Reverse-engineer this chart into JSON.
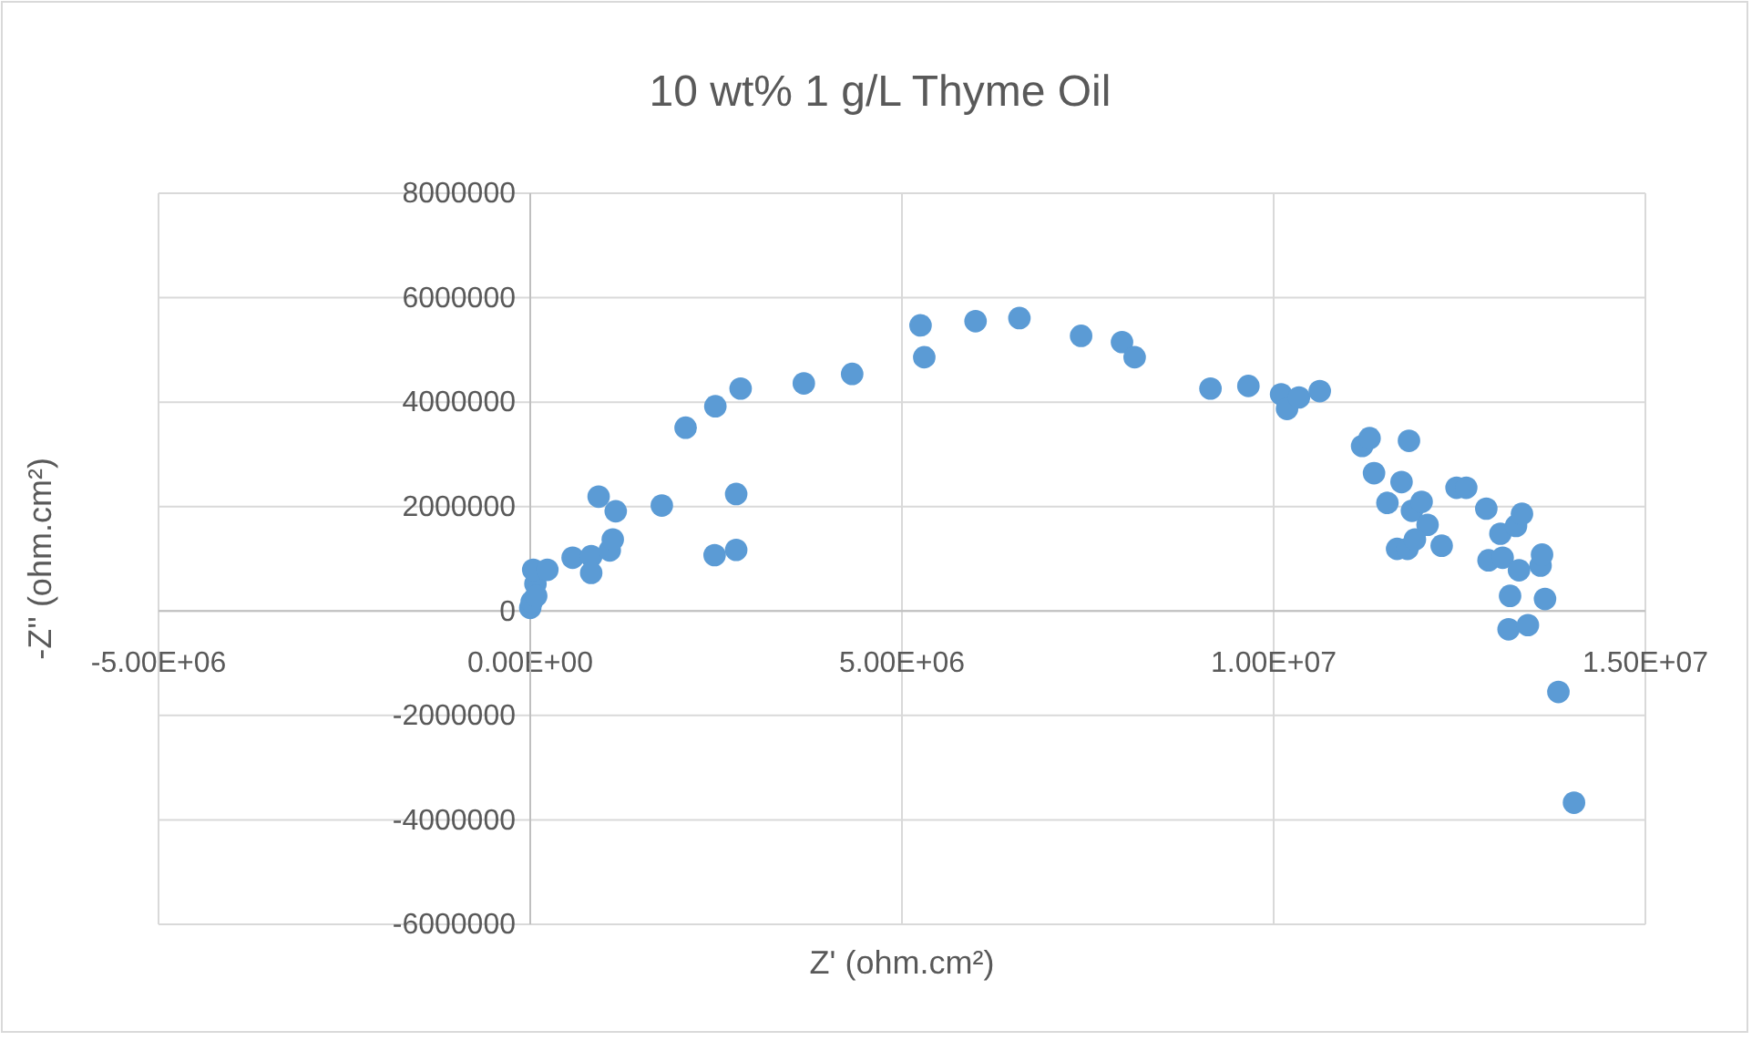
{
  "chart_data": {
    "type": "scatter",
    "title": "10 wt% 1 g/L Thyme Oil",
    "xlabel": "Z' (ohm.cm²)",
    "ylabel": "-Z'' (ohm.cm²)",
    "xlim": [
      -5000000,
      15000000
    ],
    "xticks": [
      {
        "value": -5000000,
        "label": "-5.00E+06"
      },
      {
        "value": 0,
        "label": "0.00E+00"
      },
      {
        "value": 5000000,
        "label": "5.00E+06"
      },
      {
        "value": 10000000,
        "label": "1.00E+07"
      },
      {
        "value": 15000000,
        "label": "1.50E+07"
      }
    ],
    "ylim": [
      -6000000,
      8000000
    ],
    "yticks": [
      -6000000,
      -4000000,
      -2000000,
      0,
      2000000,
      4000000,
      6000000,
      8000000
    ],
    "grid": true,
    "marker": "circle",
    "series": [
      {
        "color": "#5b9bd5",
        "x": [
          0,
          20000,
          70000,
          80000,
          40000,
          230000,
          570000,
          820000,
          820000,
          1070000,
          1110000,
          1150000,
          920000,
          1770000,
          2480000,
          2770000,
          2770000,
          2090000,
          2490000,
          2830000,
          3680000,
          4330000,
          5250000,
          5300000,
          5990000,
          6580000,
          7410000,
          7960000,
          8130000,
          9150000,
          9660000,
          10100000,
          10180000,
          10340000,
          10620000,
          11190000,
          11290000,
          11820000,
          11350000,
          11720000,
          11530000,
          11860000,
          11990000,
          12070000,
          11660000,
          11800000,
          11900000,
          12260000,
          12460000,
          12590000,
          12860000,
          13050000,
          13260000,
          13340000,
          12890000,
          13080000,
          13300000,
          13590000,
          13610000,
          13180000,
          13650000,
          13160000,
          13420000,
          13830000,
          14040000
        ],
        "values": [
          60000,
          180000,
          520000,
          290000,
          790000,
          790000,
          1020000,
          1050000,
          730000,
          1160000,
          1370000,
          1910000,
          2190000,
          2020000,
          1070000,
          1170000,
          2240000,
          3510000,
          3920000,
          4260000,
          4360000,
          4540000,
          5470000,
          4860000,
          5550000,
          5610000,
          5270000,
          5150000,
          4860000,
          4260000,
          4310000,
          4150000,
          3870000,
          4090000,
          4210000,
          3160000,
          3310000,
          3260000,
          2640000,
          2470000,
          2070000,
          1920000,
          2090000,
          1650000,
          1190000,
          1190000,
          1370000,
          1250000,
          2360000,
          2360000,
          1960000,
          1480000,
          1630000,
          1860000,
          970000,
          1020000,
          780000,
          870000,
          1080000,
          290000,
          230000,
          -350000,
          -270000,
          -1550000,
          -3670000
        ]
      }
    ]
  }
}
